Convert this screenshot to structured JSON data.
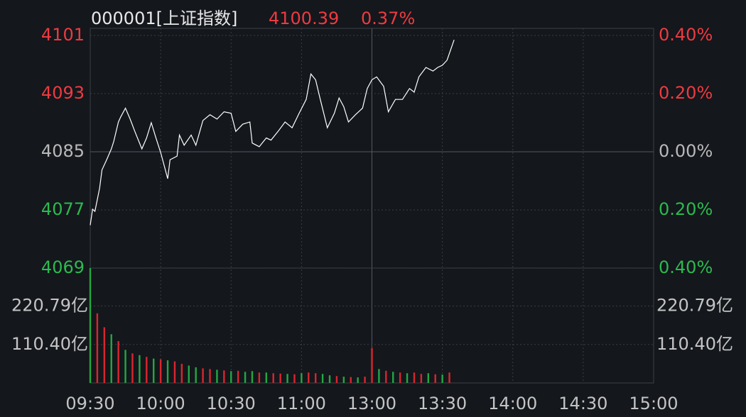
{
  "chart_data": [
    {
      "type": "line",
      "title": "000001[上证指数]",
      "annotations": [
        "4100.39",
        "0.37%"
      ],
      "xlim": [
        0,
        240
      ],
      "xticks": [
        {
          "value": 0,
          "label": "09:30"
        },
        {
          "value": 30,
          "label": "10:00"
        },
        {
          "value": 60,
          "label": "10:30"
        },
        {
          "value": 90,
          "label": "11:00"
        },
        {
          "value": 120,
          "label": "13:00"
        },
        {
          "value": 150,
          "label": "13:30"
        },
        {
          "value": 180,
          "label": "14:00"
        },
        {
          "value": 210,
          "label": "14:30"
        },
        {
          "value": 240,
          "label": "15:00"
        }
      ],
      "session_break": 120,
      "ylim": [
        4069,
        4101
      ],
      "yticks": [
        4101,
        4093,
        4085,
        4077,
        4069
      ],
      "baseline": 4085,
      "y2lim": [
        -0.4,
        0.4
      ],
      "y2ticks": [
        {
          "value": 0.4,
          "label": "0.40%"
        },
        {
          "value": 0.2,
          "label": "0.20%"
        },
        {
          "value": 0,
          "label": "0.00%"
        },
        {
          "value": -0.2,
          "label": "0.20%"
        },
        {
          "value": -0.4,
          "label": "0.40%"
        }
      ],
      "grid": true,
      "up_color": "#ee3a40",
      "down_color": "#2cba4f",
      "flat_color": "#b9b9b9",
      "series": [
        {
          "color": "#ffffff",
          "x": [
            0,
            1,
            2,
            4,
            5,
            7,
            9,
            10,
            12,
            13,
            15,
            17,
            19,
            22,
            24,
            26,
            28,
            30,
            33,
            34,
            37,
            38,
            40,
            43,
            45,
            48,
            51,
            54,
            57,
            60,
            62,
            65,
            68,
            69,
            72,
            75,
            77,
            80,
            83,
            86,
            89,
            92,
            94,
            96,
            98,
            101,
            104,
            106,
            108,
            110,
            113,
            116,
            118,
            120,
            122,
            125,
            127,
            130,
            133,
            136,
            138,
            140,
            143,
            146,
            148,
            150,
            152,
            155
          ],
          "values": [
            4074.9,
            4077.1,
            4076.8,
            4080.0,
            4082.5,
            4083.9,
            4085.4,
            4086.4,
            4089.1,
            4089.8,
            4091.0,
            4089.5,
            4087.8,
            4085.4,
            4086.9,
            4089.0,
            4086.9,
            4084.9,
            4081.3,
            4083.9,
            4084.4,
            4087.3,
            4085.9,
            4087.3,
            4085.9,
            4089.3,
            4090.1,
            4089.5,
            4090.5,
            4090.3,
            4087.8,
            4088.8,
            4089.1,
            4086.2,
            4085.7,
            4086.9,
            4086.6,
            4087.8,
            4089.1,
            4088.3,
            4090.3,
            4092.2,
            4095.7,
            4094.9,
            4092.2,
            4088.3,
            4090.3,
            4092.4,
            4091.2,
            4089.1,
            4090.1,
            4091.0,
            4093.7,
            4094.9,
            4095.3,
            4094.0,
            4090.5,
            4092.2,
            4092.2,
            4093.7,
            4093.2,
            4095.3,
            4096.6,
            4096.1,
            4096.6,
            4096.9,
            4097.6,
            4100.4
          ]
        }
      ]
    },
    {
      "type": "bar",
      "ylim": [
        0,
        330
      ],
      "yticks": [
        {
          "value": 220.79,
          "label": "220.79亿"
        },
        {
          "value": 110.4,
          "label": "110.40亿"
        }
      ],
      "x": [
        0,
        3,
        6,
        9,
        12,
        15,
        18,
        21,
        24,
        27,
        30,
        33,
        36,
        39,
        42,
        45,
        48,
        51,
        54,
        57,
        60,
        63,
        66,
        69,
        72,
        75,
        78,
        81,
        84,
        87,
        90,
        93,
        96,
        99,
        102,
        105,
        108,
        111,
        114,
        117,
        120,
        123,
        126,
        129,
        132,
        135,
        138,
        141,
        144,
        147,
        150,
        153
      ],
      "series": [
        {
          "color": "#d8262e",
          "values": [
            null,
            200,
            160,
            null,
            120,
            null,
            85,
            null,
            75,
            null,
            68,
            null,
            62,
            55,
            null,
            null,
            42,
            40,
            null,
            36,
            null,
            35,
            null,
            null,
            30,
            null,
            28,
            27,
            null,
            25,
            null,
            30,
            28,
            null,
            null,
            20,
            null,
            17,
            null,
            18,
            100,
            null,
            35,
            null,
            30,
            null,
            30,
            26,
            null,
            25,
            null,
            30
          ]
        },
        {
          "color": "#22a843",
          "values": [
            330,
            null,
            null,
            140,
            null,
            95,
            null,
            80,
            null,
            70,
            null,
            65,
            null,
            null,
            50,
            45,
            null,
            null,
            38,
            null,
            34,
            null,
            32,
            34,
            null,
            30,
            null,
            null,
            26,
            null,
            28,
            null,
            null,
            26,
            22,
            null,
            18,
            null,
            16,
            null,
            null,
            40,
            null,
            32,
            null,
            28,
            null,
            null,
            28,
            null,
            24,
            null
          ]
        }
      ]
    }
  ]
}
